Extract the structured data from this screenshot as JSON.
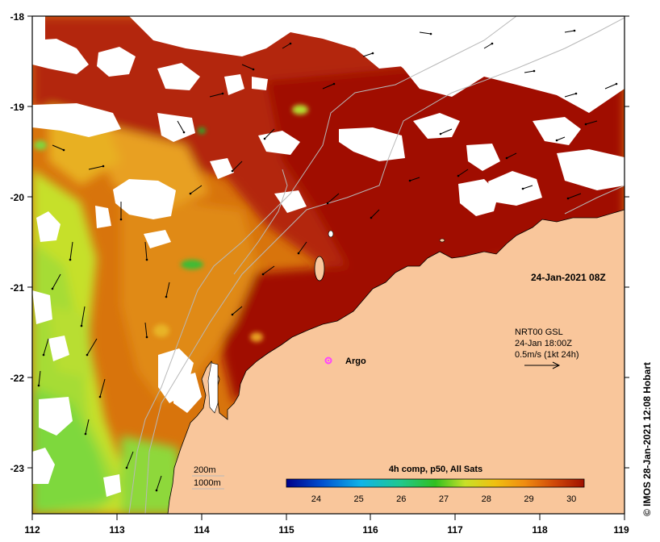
{
  "map": {
    "lon_ticks": [
      "112",
      "113",
      "114",
      "115",
      "116",
      "117",
      "118",
      "119"
    ],
    "lat_ticks": [
      "-18",
      "-19",
      "-20",
      "-21",
      "-22",
      "-23"
    ],
    "date_label": "24-Jan-2021 08Z",
    "current_legend": {
      "line1": "NRT00 GSL",
      "line2": "24-Jan 18:00Z",
      "line3": "0.5m/s (1kt 24h)"
    },
    "argo_label": "Argo",
    "isobaths": {
      "first": "200m",
      "second": "1000m"
    },
    "colorbar": {
      "title": "4h comp, p50, All Sats",
      "ticks": [
        "24",
        "25",
        "26",
        "27",
        "28",
        "29",
        "30"
      ],
      "range": [
        23.3,
        30.3
      ]
    },
    "credit": "© IMOS 28-Jan-2021 12:08 Hobart"
  },
  "colors": {
    "land": "#f9c69b",
    "cloud": "#ffffff",
    "sst_hot": "#a01000",
    "sst_warm": "#d45a05",
    "sst_mid": "#e89a18",
    "sst_cool": "#c8e028",
    "sst_cold": "#68d84a",
    "argo": "#ff44ff"
  }
}
